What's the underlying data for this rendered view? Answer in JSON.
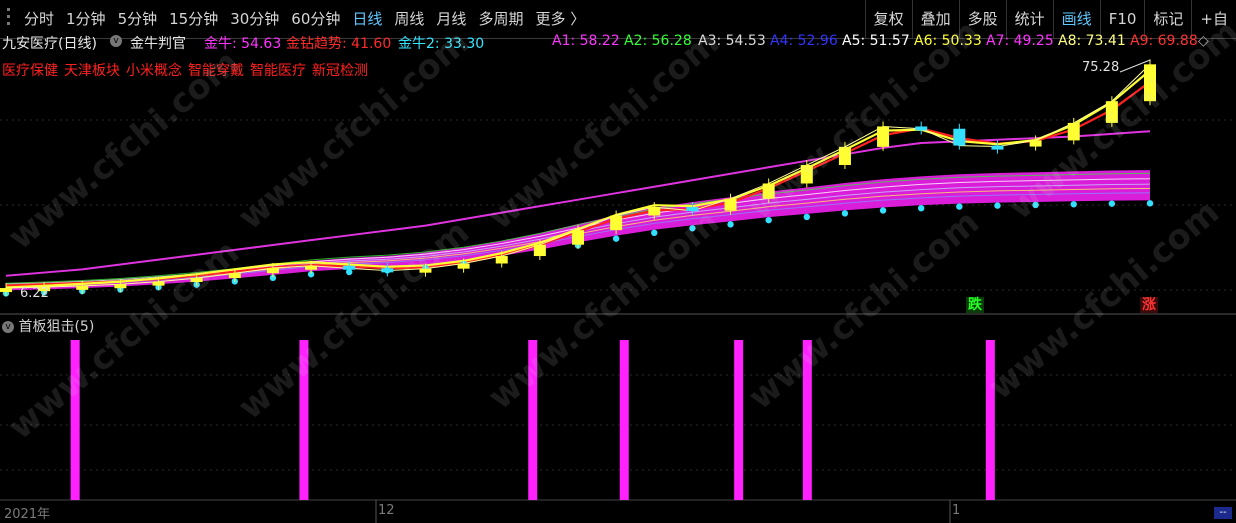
{
  "toolbar": {
    "periods": [
      "分时",
      "1分钟",
      "5分钟",
      "15分钟",
      "30分钟",
      "60分钟",
      "日线",
      "周线",
      "月线",
      "多周期",
      "更多 〉"
    ],
    "active_period": "日线",
    "right_items": [
      "复权",
      "叠加",
      "多股",
      "统计",
      "画线",
      "F10",
      "标记",
      "+自"
    ],
    "active_right": "画线"
  },
  "header": {
    "stock": "九安医疗(日线)",
    "indicator": "金牛判官",
    "values": [
      {
        "text": "金牛: 54.63",
        "color": "#ff33ff"
      },
      {
        "text": "金钻趋势: 41.60",
        "color": "#ff2a2a"
      },
      {
        "text": "金牛2: 33.30",
        "color": "#33e6ff"
      },
      {
        "text": "A1: 58.22",
        "color": "#ff33ff"
      },
      {
        "text": "A2: 56.28",
        "color": "#33ff33"
      },
      {
        "text": "A3: 54.53",
        "color": "#d9d9d9"
      },
      {
        "text": "A4: 52.96",
        "color": "#3333ff"
      },
      {
        "text": "A5: 51.57",
        "color": "#ffffff"
      },
      {
        "text": "A6: 50.33",
        "color": "#ffff33"
      },
      {
        "text": "A7: 49.25",
        "color": "#ff33ff"
      },
      {
        "text": "A8: 73.41",
        "color": "#ffff80"
      },
      {
        "text": "A9: 69.88",
        "color": "#ff3333"
      }
    ],
    "sectors": [
      "医疗保健",
      "天津板块",
      "小米概念",
      "智能穿戴",
      "智能医疗",
      "新冠检测"
    ]
  },
  "price_labels": {
    "high": "75.28",
    "low": "6.22"
  },
  "markers": {
    "down": "跌",
    "up": "涨"
  },
  "sub_indicator": "首板狙击(5)",
  "dates": [
    "2021年",
    "12",
    "1"
  ],
  "watermark": "www.cfchi.com",
  "colors": {
    "accent": "#5fc8ff",
    "magenta": "#ff22ff",
    "cyan": "#33e0ff",
    "yellow": "#ffff33",
    "red": "#ff2020"
  },
  "chart_data": {
    "type": "line",
    "title": "",
    "series": [
      {
        "values": [
          6.22,
          6.5,
          6.9,
          7.4,
          8.2,
          9.3,
          10.8,
          12.4,
          13.1,
          12.3,
          11.6,
          12.2,
          13.8,
          16.1,
          19.6,
          24.1,
          28.6,
          31.2,
          30.1,
          33.8,
          38.5,
          44.2,
          49.8,
          56.1,
          55.4,
          50.2,
          49.9,
          51.8,
          57.2,
          63.9,
          75.28
        ]
      },
      {
        "values": [
          10,
          11,
          12,
          13.5,
          15,
          16.5,
          18,
          19.5,
          21,
          22.5,
          24,
          25.5,
          27.5,
          29.5,
          31.5,
          33.5,
          35.5,
          37.5,
          39.5,
          41.5,
          43.5,
          45.5,
          47.5,
          49.5,
          51,
          51.5,
          52,
          52.5,
          53,
          53.8,
          54.63
        ]
      },
      {
        "values": [
          5.5,
          5.8,
          6.2,
          6.7,
          7.4,
          8.2,
          9.2,
          10.3,
          11.4,
          12.1,
          12.6,
          13.4,
          14.6,
          16.2,
          18.1,
          20.3,
          22.4,
          24.2,
          25.6,
          26.8,
          28.1,
          29.1,
          30.2,
          31.1,
          31.8,
          32.3,
          32.6,
          32.8,
          33.0,
          33.2,
          33.3
        ]
      },
      {
        "values": [
          7,
          7.4,
          7.8,
          8.3,
          9,
          10,
          11.3,
          12.6,
          13.3,
          12.9,
          12.3,
          12.6,
          14,
          16.4,
          19.5,
          23.6,
          27.6,
          30.2,
          30.6,
          32.6,
          37,
          42.4,
          47.8,
          53.4,
          55.5,
          52.5,
          50.8,
          51.6,
          55.2,
          61.2,
          69.88
        ]
      },
      {
        "values": [
          6.4,
          6.9,
          7.5,
          8.2,
          9.2,
          10.5,
          12,
          13.5,
          14.2,
          13.5,
          12.8,
          13.2,
          14.6,
          17,
          20.2,
          24.4,
          28.8,
          31.8,
          31.5,
          33.6,
          37.8,
          43.2,
          48.9,
          54.8,
          55.1,
          51.6,
          50.6,
          51.9,
          56.6,
          63.6,
          73.41
        ]
      }
    ],
    "signals": [
      3,
      13,
      23,
      27,
      32,
      35,
      43
    ]
  }
}
